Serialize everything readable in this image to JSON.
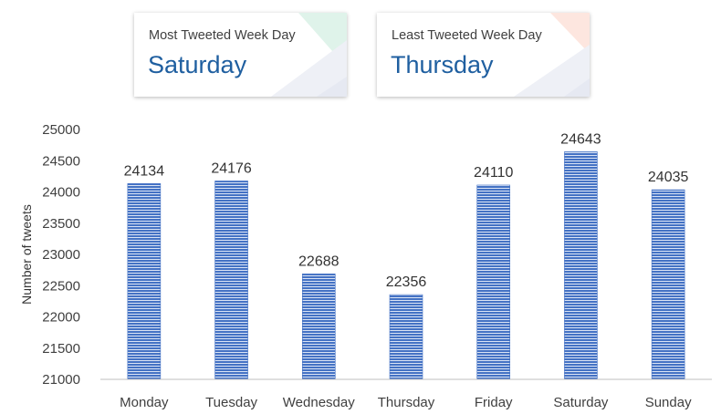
{
  "cards": {
    "most": {
      "title": "Most Tweeted Week Day",
      "value": "Saturday",
      "accent": "#d9f2e6"
    },
    "least": {
      "title": "Least Tweeted Week Day",
      "value": "Thursday",
      "accent": "#fde3dc"
    }
  },
  "chart_data": {
    "type": "bar",
    "categories": [
      "Monday",
      "Tuesday",
      "Wednesday",
      "Thursday",
      "Friday",
      "Saturday",
      "Sunday"
    ],
    "values": [
      24134,
      24176,
      22688,
      22356,
      24110,
      24643,
      24035
    ],
    "ylabel": "Number of tweets",
    "ylim": [
      21000,
      25000
    ],
    "yticks": [
      21000,
      21500,
      22000,
      22500,
      23000,
      23500,
      24000,
      24500,
      25000
    ],
    "grid": false,
    "bar_color": "#4472c4",
    "bar_fill": "horizontal-stripes"
  }
}
